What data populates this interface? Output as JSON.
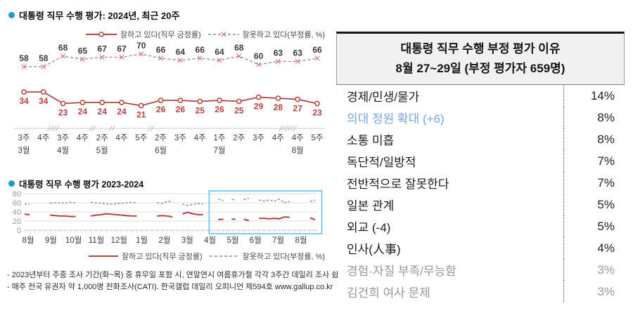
{
  "colors": {
    "title_bullet_blue": "#1C9AD6",
    "positive_red": "#B3433E",
    "negative_line_gray": "#8C8C8C",
    "negative_marker_red": "#DB837D",
    "negative_label_gray": "#3a3a3a",
    "axis_gray": "#cccccc",
    "highlight_box_blue": "#5FC3EE",
    "table_header_bg": "#F1F1F1",
    "table_blue_row": "#7AA5D9",
    "table_gray_row": "#979797"
  },
  "notes": {
    "line1": "- 2023년부터 주중 조사 기간(화~목) 중 휴무일 포함 시, 연말연시 여름휴가철 각각 3주간 데일리 조사 쉼",
    "line2": "- 매주 전국 유권자 약 1,000명 전화조사(CATI). 한국갤럽 데일리 오피니언 제594호 www.gallup.co.kr"
  },
  "chart_data": [
    {
      "id": "recent20",
      "type": "line",
      "title": "대통령 직무 수행 평가: 2024년, 최근 20주",
      "legend_position": "top-right",
      "week_labels": [
        "3주",
        "4주",
        "3주",
        "4주",
        "2주",
        "4주",
        "5주",
        "2주",
        "3주",
        "4주",
        "1주",
        "2주",
        "3주",
        "4주",
        "4주",
        "5주"
      ],
      "month_labels": [
        {
          "i": 0,
          "m": "3월"
        },
        {
          "i": 2,
          "m": "4월"
        },
        {
          "i": 4,
          "m": "5월"
        },
        {
          "i": 7,
          "m": "6월"
        },
        {
          "i": 10,
          "m": "7월"
        },
        {
          "i": 14,
          "m": "8월"
        }
      ],
      "axis_breaks": [
        {
          "after": 1,
          "slashes": 4
        },
        {
          "after": 3,
          "slashes": 2
        },
        {
          "after": 4,
          "slashes": 2
        },
        {
          "after": 6,
          "slashes": 2
        },
        {
          "after": 13,
          "slashes": 6
        }
      ],
      "series": [
        {
          "name": "잘하고 있다(직무 긍정률)",
          "style": "solid",
          "color": "#B3433E",
          "values": [
            34,
            34,
            23,
            24,
            24,
            24,
            21,
            26,
            26,
            25,
            26,
            25,
            29,
            28,
            27,
            23
          ]
        },
        {
          "name": "잘못하고 있다(부정률, %)",
          "style": "dashed",
          "color": "#8C8C8C",
          "marker_color": "#DB837D",
          "values": [
            58,
            58,
            68,
            65,
            67,
            67,
            70,
            66,
            64,
            66,
            64,
            68,
            60,
            63,
            63,
            66
          ]
        }
      ]
    },
    {
      "id": "overview",
      "type": "line",
      "title": "대통령 직무 수행 평가 2023-2024",
      "legend_position": "bottom-right",
      "ylim": [
        0,
        80
      ],
      "yticks": [
        0,
        20,
        40,
        60,
        80
      ],
      "x_month_labels": [
        "8월",
        "9월",
        "10월",
        "11월",
        "12월",
        "1월",
        "2월",
        "3월",
        "4월",
        "5월",
        "6월",
        "7월",
        "8월"
      ],
      "highlight_box_weeks": [
        36,
        57
      ],
      "series": [
        {
          "name": "잘하고 있다(직무 긍정률)",
          "style": "solid",
          "color": "#B3433E",
          "values": [
            35,
            34,
            null,
            null,
            null,
            33,
            32,
            31,
            31,
            30,
            30,
            null,
            null,
            31,
            33,
            34,
            36,
            35,
            34,
            33,
            32,
            31,
            31,
            null,
            null,
            null,
            31,
            32,
            31,
            29,
            null,
            36,
            39,
            36,
            34,
            34,
            null,
            null,
            23,
            24,
            null,
            24,
            null,
            24,
            21,
            null,
            26,
            26,
            25,
            26,
            25,
            29,
            28,
            null,
            null,
            null,
            27,
            23
          ]
        },
        {
          "name": "잘못하고 있다(부정률, %)",
          "style": "dashed",
          "color": "#8C8C8C",
          "values": [
            57,
            57,
            null,
            null,
            null,
            59,
            60,
            60,
            59,
            61,
            60,
            null,
            null,
            61,
            60,
            59,
            58,
            57,
            58,
            59,
            60,
            61,
            60,
            null,
            null,
            null,
            60,
            59,
            63,
            63,
            null,
            57,
            54,
            57,
            58,
            58,
            null,
            null,
            68,
            65,
            null,
            67,
            null,
            67,
            70,
            null,
            66,
            64,
            66,
            64,
            68,
            60,
            63,
            null,
            null,
            null,
            63,
            66
          ]
        }
      ]
    },
    {
      "id": "negative-reasons",
      "type": "table",
      "title": "대통령 직무 수행 부정 평가 이유",
      "subtitle": "8월 27~29일 (부정 평가자 659명)",
      "rows": [
        {
          "label": "경제/민생/물가",
          "value": "14%",
          "emphasis": "normal"
        },
        {
          "label": "의대 정원 확대 (+6)",
          "value": "8%",
          "emphasis": "blue"
        },
        {
          "label": "소통 미흡",
          "value": "8%",
          "emphasis": "normal"
        },
        {
          "label": "독단적/일방적",
          "value": "7%",
          "emphasis": "normal"
        },
        {
          "label": "전반적으로 잘못한다",
          "value": "7%",
          "emphasis": "normal"
        },
        {
          "label": "일본 관계",
          "value": "5%",
          "emphasis": "normal"
        },
        {
          "label": "외교 (-4)",
          "value": "5%",
          "emphasis": "normal"
        },
        {
          "label": "인사(人事)",
          "value": "4%",
          "emphasis": "normal"
        },
        {
          "label": "경험·자질 부족/무능함",
          "value": "3%",
          "emphasis": "gray"
        },
        {
          "label": "김건희 여사 문제",
          "value": "3%",
          "emphasis": "gray"
        }
      ]
    }
  ]
}
